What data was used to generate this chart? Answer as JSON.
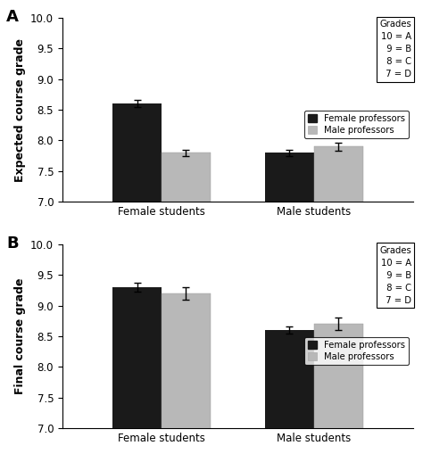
{
  "panel_A": {
    "label": "A",
    "ylabel": "Expected course grade",
    "ylim": [
      7,
      10
    ],
    "yticks": [
      7.0,
      7.5,
      8.0,
      8.5,
      9.0,
      9.5,
      10.0
    ],
    "groups": [
      "Female students",
      "Male students"
    ],
    "female_prof_values": [
      8.6,
      7.8
    ],
    "male_prof_values": [
      7.8,
      7.9
    ],
    "female_prof_errors": [
      0.06,
      0.05
    ],
    "male_prof_errors": [
      0.05,
      0.065
    ]
  },
  "panel_B": {
    "label": "B",
    "ylabel": "Final course grade",
    "ylim": [
      7,
      10
    ],
    "yticks": [
      7.0,
      7.5,
      8.0,
      8.5,
      9.0,
      9.5,
      10.0
    ],
    "groups": [
      "Female students",
      "Male students"
    ],
    "female_prof_values": [
      9.3,
      8.6
    ],
    "male_prof_values": [
      9.2,
      8.7
    ],
    "female_prof_errors": [
      0.07,
      0.06
    ],
    "male_prof_errors": [
      0.1,
      0.1
    ]
  },
  "bar_width": 0.32,
  "female_color": "#1a1a1a",
  "male_color": "#b8b8b8",
  "grades_text": "Grades\n10 = A\n  9 = B\n  8 = C\n  7 = D",
  "legend_labels": [
    "Female professors",
    "Male professors"
  ],
  "background_color": "#ffffff",
  "font_size_label": 9,
  "font_size_tick": 8.5,
  "font_size_panel": 13
}
